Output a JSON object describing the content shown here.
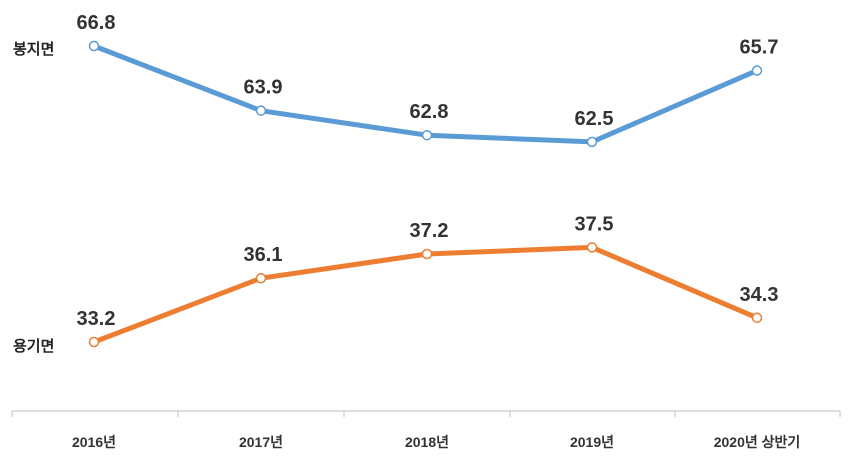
{
  "chart_data": {
    "type": "line",
    "categories": [
      "2016년",
      "2017년",
      "2018년",
      "2019년",
      "2020년 상반기"
    ],
    "series": [
      {
        "name": "봉지면",
        "color": "#5B9BD5",
        "values": [
          66.8,
          63.9,
          62.8,
          62.5,
          65.7
        ]
      },
      {
        "name": "용기면",
        "color": "#ED7D31",
        "values": [
          33.2,
          36.1,
          37.2,
          37.5,
          34.3
        ]
      }
    ],
    "value_labels": {
      "봉지면": [
        "66.8",
        "63.9",
        "62.8",
        "62.5",
        "65.7"
      ],
      "용기면": [
        "33.2",
        "36.1",
        "37.2",
        "37.5",
        "34.3"
      ]
    },
    "title": "",
    "xlabel": "",
    "ylabel": "",
    "grid": false,
    "legend": "inline-left",
    "marker": "circle-white"
  }
}
